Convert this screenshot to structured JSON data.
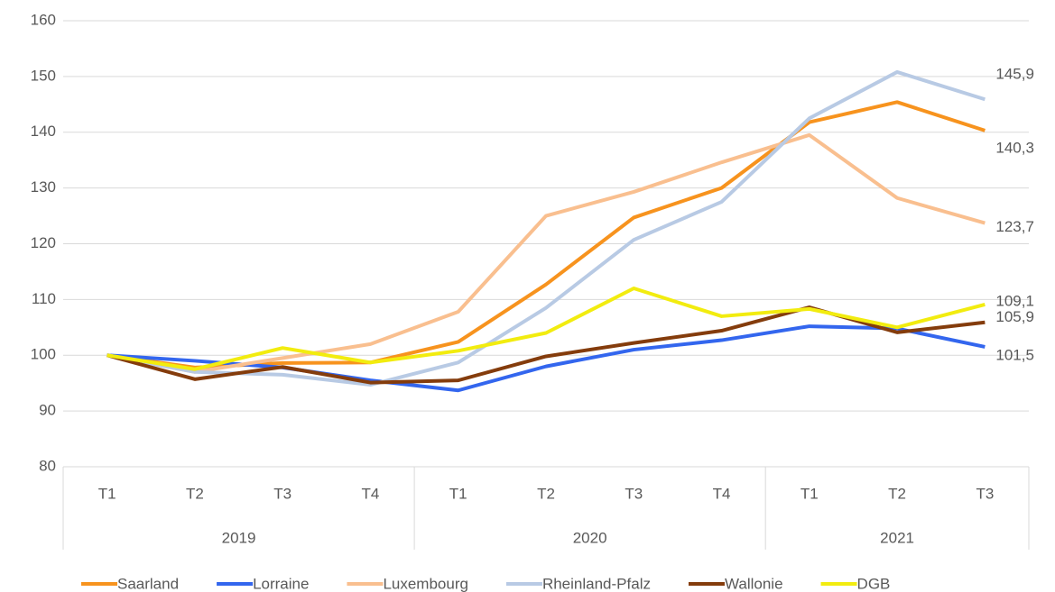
{
  "chart_data": {
    "type": "line",
    "category_groups": [
      {
        "label": "2019",
        "categories": [
          "T1",
          "T2",
          "T3",
          "T4"
        ]
      },
      {
        "label": "2020",
        "categories": [
          "T1",
          "T2",
          "T3",
          "T4"
        ]
      },
      {
        "label": "2021",
        "categories": [
          "T1",
          "T2",
          "T3"
        ]
      }
    ],
    "series": [
      {
        "name": "Saarland",
        "color": "#f7931e",
        "values": [
          100,
          97.8,
          98.6,
          98.7,
          102.4,
          112.7,
          124.7,
          130,
          141.8,
          145.4,
          140.3
        ],
        "value_labels": [
          null,
          null,
          null,
          null,
          null,
          null,
          null,
          null,
          null,
          null,
          "140,3"
        ]
      },
      {
        "name": "Lorraine",
        "color": "#3366ee",
        "values": [
          100,
          99,
          97.8,
          95.5,
          93.7,
          98,
          101,
          102.7,
          105.2,
          104.8,
          101.5
        ],
        "value_labels": [
          null,
          null,
          null,
          null,
          null,
          null,
          null,
          null,
          null,
          null,
          "101,5"
        ]
      },
      {
        "name": "Luxembourg",
        "color": "#f9bf8f",
        "values": [
          100,
          97,
          99.5,
          102,
          107.8,
          125,
          129.3,
          134.6,
          139.5,
          128.2,
          123.7
        ],
        "value_labels": [
          null,
          null,
          null,
          null,
          null,
          null,
          null,
          null,
          null,
          null,
          "123,7"
        ]
      },
      {
        "name": "Rheinland-Pfalz",
        "color": "#b8cae4",
        "values": [
          100,
          97,
          96.5,
          94.7,
          98.7,
          108.5,
          120.7,
          127.5,
          142.5,
          150.8,
          145.9
        ],
        "value_labels": [
          null,
          null,
          null,
          null,
          null,
          null,
          null,
          null,
          null,
          null,
          "145,9"
        ]
      },
      {
        "name": "Wallonie",
        "color": "#843c0c",
        "values": [
          100,
          95.7,
          97.9,
          95.1,
          95.5,
          99.8,
          102.2,
          104.4,
          108.6,
          104.1,
          105.9
        ],
        "value_labels": [
          null,
          null,
          null,
          null,
          null,
          null,
          null,
          null,
          null,
          null,
          "105,9"
        ]
      },
      {
        "name": "DGB",
        "color": "#f2ec0f",
        "values": [
          100,
          97.5,
          101.3,
          98.7,
          100.8,
          104,
          112,
          107,
          108.3,
          105,
          109.1
        ],
        "value_labels": [
          null,
          null,
          null,
          null,
          null,
          null,
          null,
          null,
          null,
          null,
          "109,1"
        ]
      }
    ],
    "ylim": [
      80,
      160
    ],
    "yticks": [
      80,
      90,
      100,
      110,
      120,
      130,
      140,
      150,
      160
    ],
    "grid": true,
    "legend": "bottom"
  }
}
